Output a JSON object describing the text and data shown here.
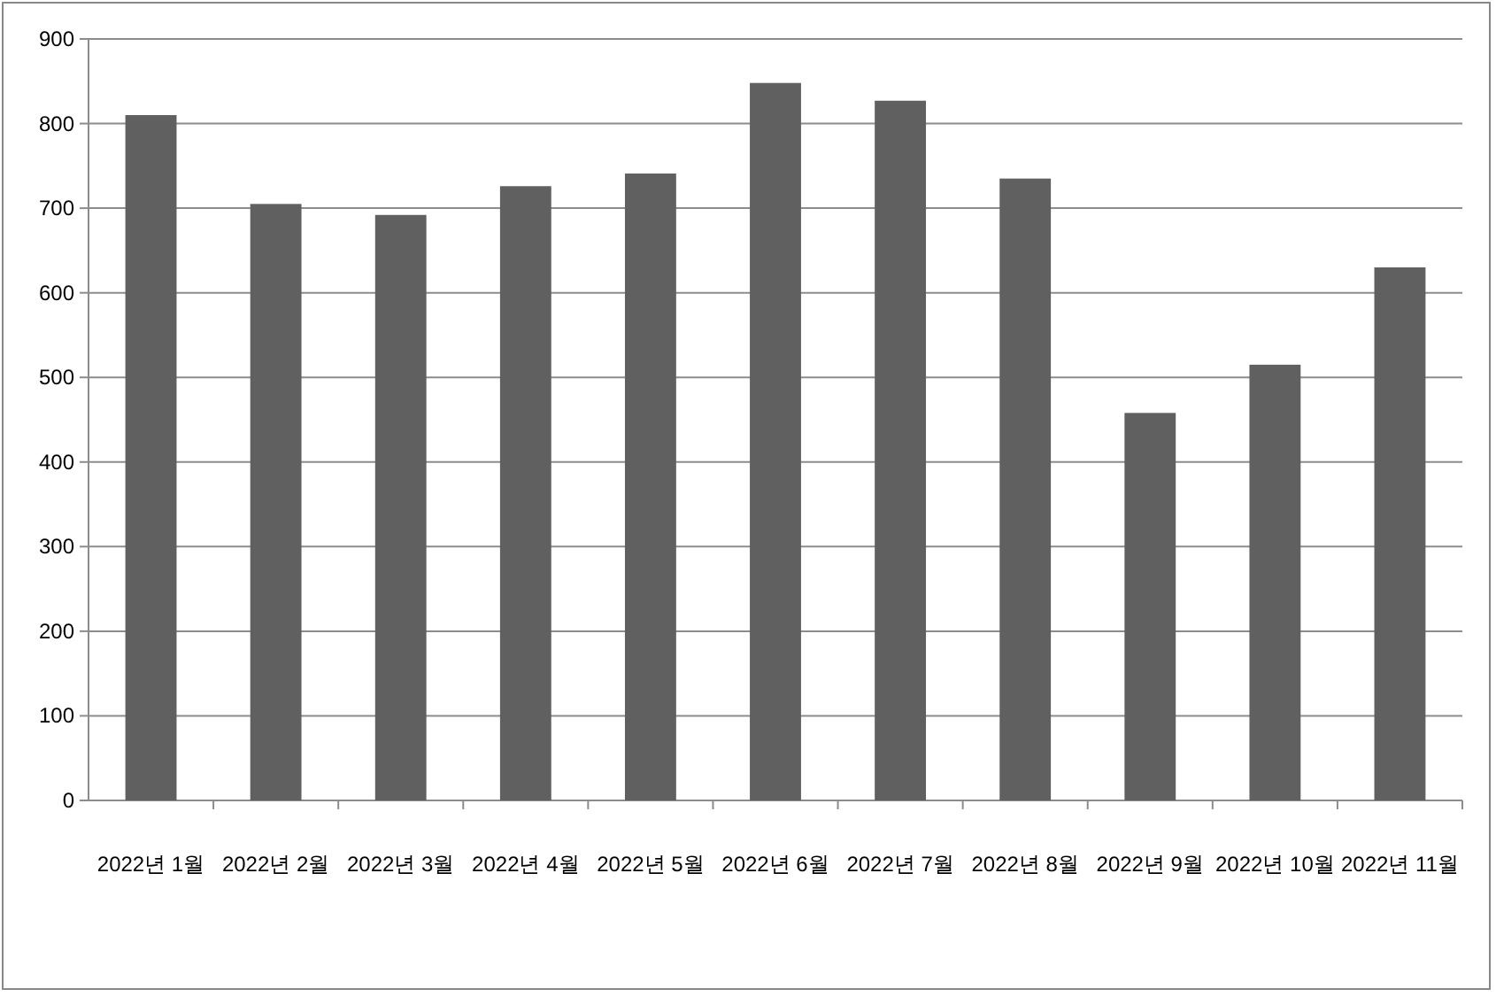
{
  "chart_data": {
    "type": "bar",
    "categories": [
      "2022년 1월",
      "2022년 2월",
      "2022년 3월",
      "2022년 4월",
      "2022년 5월",
      "2022년 6월",
      "2022년 7월",
      "2022년 8월",
      "2022년 9월",
      "2022년 10월",
      "2022년 11월"
    ],
    "values": [
      810,
      705,
      692,
      726,
      741,
      848,
      827,
      735,
      458,
      515,
      630
    ],
    "color": "#606060",
    "ylim": [
      0,
      900
    ],
    "yticks": [
      0,
      100,
      200,
      300,
      400,
      500,
      600,
      700,
      800,
      900
    ],
    "grid": "y"
  }
}
